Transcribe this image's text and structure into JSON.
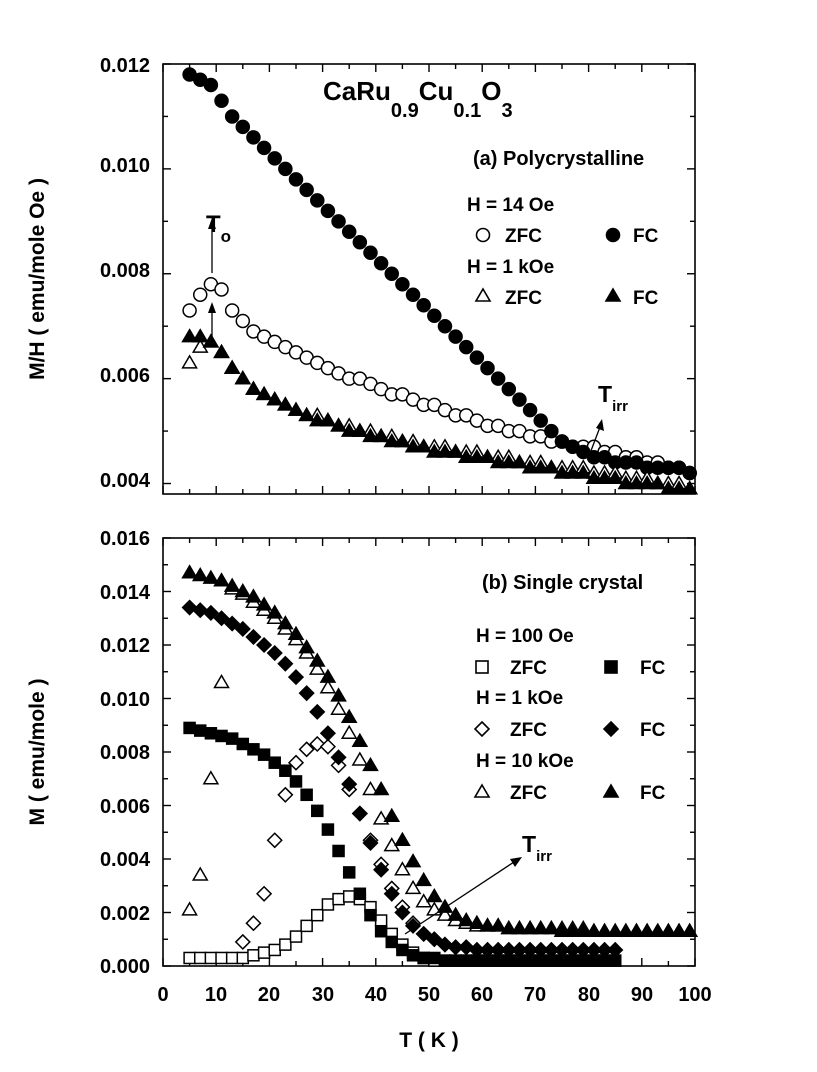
{
  "chart_data": [
    {
      "type": "scatter",
      "panel": "top",
      "title": "CaRu0.9Cu0.1O3",
      "title_parts": {
        "a": "CaRu",
        "b": "0.9",
        "c": "Cu",
        "d": "0.1",
        "e": "O",
        "f": "3"
      },
      "subtitle": "(a) Polycrystalline",
      "xlabel": "",
      "ylabel": "M/H ( emu/mole Oe )",
      "xlim": [
        0,
        100
      ],
      "ylim": [
        0.0038,
        0.012
      ],
      "yticks": [
        "0.004",
        "0.006",
        "0.008",
        "0.010",
        "0.012"
      ],
      "legend": {
        "group1": "H = 14 Oe",
        "group2": "H = 1 kOe",
        "zfc": "ZFC",
        "fc": "FC"
      },
      "annotations": {
        "to_main": "T",
        "to_sub": "o",
        "tirr_main": "T",
        "tirr_sub": "irr"
      },
      "series": [
        {
          "name": "H = 14 Oe ZFC",
          "marker": "circle-open",
          "x": [
            5,
            7,
            9,
            11,
            13,
            15,
            17,
            19,
            21,
            23,
            25,
            27,
            29,
            31,
            33,
            35,
            37,
            39,
            41,
            43,
            45,
            47,
            49,
            51,
            53,
            55,
            57,
            59,
            61,
            63,
            65,
            67,
            69,
            71,
            73,
            75,
            77,
            79,
            81,
            83,
            85,
            87,
            89,
            91,
            93,
            95,
            97,
            99
          ],
          "y": [
            0.0073,
            0.0076,
            0.0078,
            0.0077,
            0.0073,
            0.0071,
            0.0069,
            0.0068,
            0.0067,
            0.0066,
            0.0065,
            0.0064,
            0.0063,
            0.0062,
            0.0061,
            0.006,
            0.006,
            0.0059,
            0.0058,
            0.0057,
            0.0057,
            0.0056,
            0.0055,
            0.0055,
            0.0054,
            0.0053,
            0.0053,
            0.0052,
            0.0051,
            0.0051,
            0.005,
            0.005,
            0.0049,
            0.0049,
            0.0048,
            0.0048,
            0.0047,
            0.0047,
            0.0047,
            0.0046,
            0.0046,
            0.0045,
            0.0045,
            0.0044,
            0.0044,
            0.0043,
            0.0043,
            0.0042
          ]
        },
        {
          "name": "H = 14 Oe FC",
          "marker": "circle-filled",
          "x": [
            5,
            7,
            9,
            11,
            13,
            15,
            17,
            19,
            21,
            23,
            25,
            27,
            29,
            31,
            33,
            35,
            37,
            39,
            41,
            43,
            45,
            47,
            49,
            51,
            53,
            55,
            57,
            59,
            61,
            63,
            65,
            67,
            69,
            71,
            73,
            75,
            77,
            79,
            81,
            83,
            85,
            87,
            89,
            91,
            93,
            95,
            97,
            99
          ],
          "y": [
            0.0118,
            0.0117,
            0.0116,
            0.0113,
            0.011,
            0.0108,
            0.0106,
            0.0104,
            0.0102,
            0.01,
            0.0098,
            0.0096,
            0.0094,
            0.0092,
            0.009,
            0.0088,
            0.0086,
            0.0084,
            0.0082,
            0.008,
            0.0078,
            0.0076,
            0.0074,
            0.0072,
            0.007,
            0.0068,
            0.0066,
            0.0064,
            0.0062,
            0.006,
            0.0058,
            0.0056,
            0.0054,
            0.0052,
            0.005,
            0.0048,
            0.0047,
            0.0046,
            0.0045,
            0.0045,
            0.0044,
            0.0044,
            0.0044,
            0.0043,
            0.0043,
            0.0043,
            0.0043,
            0.0042
          ]
        },
        {
          "name": "H = 1 kOe ZFC",
          "marker": "triangle-open",
          "x": [
            5,
            7,
            9,
            11,
            13,
            15,
            17,
            19,
            21,
            23,
            25,
            27,
            29,
            31,
            33,
            35,
            37,
            39,
            41,
            43,
            45,
            47,
            49,
            51,
            53,
            55,
            57,
            59,
            61,
            63,
            65,
            67,
            69,
            71,
            73,
            75,
            77,
            79,
            81,
            83,
            85,
            87,
            89,
            91,
            93,
            95,
            97,
            99
          ],
          "y": [
            0.0063,
            0.0066,
            0.0067,
            0.0065,
            0.0062,
            0.006,
            0.0058,
            0.0057,
            0.0056,
            0.0055,
            0.0054,
            0.0053,
            0.0053,
            0.0052,
            0.0051,
            0.0051,
            0.005,
            0.005,
            0.0049,
            0.0049,
            0.0048,
            0.0048,
            0.0047,
            0.0047,
            0.0047,
            0.0046,
            0.0046,
            0.0046,
            0.0045,
            0.0045,
            0.0045,
            0.0044,
            0.0044,
            0.0044,
            0.0043,
            0.0043,
            0.0043,
            0.0043,
            0.0042,
            0.0042,
            0.0042,
            0.0041,
            0.0041,
            0.0041,
            0.004,
            0.004,
            0.004,
            0.0039
          ]
        },
        {
          "name": "H = 1 kOe FC",
          "marker": "triangle-filled",
          "x": [
            5,
            7,
            9,
            11,
            13,
            15,
            17,
            19,
            21,
            23,
            25,
            27,
            29,
            31,
            33,
            35,
            37,
            39,
            41,
            43,
            45,
            47,
            49,
            51,
            53,
            55,
            57,
            59,
            61,
            63,
            65,
            67,
            69,
            71,
            73,
            75,
            77,
            79,
            81,
            83,
            85,
            87,
            89,
            91,
            93,
            95,
            97,
            99
          ],
          "y": [
            0.0068,
            0.0068,
            0.0067,
            0.0065,
            0.0062,
            0.006,
            0.0058,
            0.0057,
            0.0056,
            0.0055,
            0.0054,
            0.0053,
            0.0052,
            0.0052,
            0.0051,
            0.005,
            0.005,
            0.0049,
            0.0049,
            0.0048,
            0.0048,
            0.0047,
            0.0047,
            0.0046,
            0.0046,
            0.0046,
            0.0045,
            0.0045,
            0.0045,
            0.0044,
            0.0044,
            0.0044,
            0.0043,
            0.0043,
            0.0043,
            0.0042,
            0.0042,
            0.0042,
            0.0041,
            0.0041,
            0.0041,
            0.004,
            0.004,
            0.004,
            0.004,
            0.0039,
            0.0039,
            0.0039
          ]
        }
      ]
    },
    {
      "type": "scatter",
      "panel": "bottom",
      "subtitle": "(b) Single crystal",
      "xlabel": "T ( K )",
      "ylabel": "M ( emu/mole )",
      "xlim": [
        0,
        100
      ],
      "ylim": [
        0,
        0.016
      ],
      "xticks": [
        "0",
        "10",
        "20",
        "30",
        "40",
        "50",
        "60",
        "70",
        "80",
        "90",
        "100"
      ],
      "yticks": [
        "0.000",
        "0.002",
        "0.004",
        "0.006",
        "0.008",
        "0.010",
        "0.012",
        "0.014",
        "0.016"
      ],
      "legend": {
        "group1": "H = 100 Oe",
        "group2": "H = 1 kOe",
        "group3": "H = 10 kOe",
        "zfc": "ZFC",
        "fc": "FC"
      },
      "annotations": {
        "tirr_main": "T",
        "tirr_sub": "irr"
      },
      "series": [
        {
          "name": "H = 100 Oe ZFC",
          "marker": "square-open",
          "x": [
            5,
            7,
            9,
            11,
            13,
            15,
            17,
            19,
            21,
            23,
            25,
            27,
            29,
            31,
            33,
            35,
            37,
            39,
            41,
            43,
            45,
            47,
            49,
            51,
            53,
            55,
            57,
            59,
            61,
            63,
            65,
            67,
            69,
            71,
            73,
            75,
            77,
            79,
            81,
            83,
            85
          ],
          "y": [
            0.0003,
            0.0003,
            0.0003,
            0.0003,
            0.0003,
            0.0003,
            0.0004,
            0.0005,
            0.0006,
            0.0008,
            0.0011,
            0.0015,
            0.0019,
            0.0023,
            0.0025,
            0.0026,
            0.0025,
            0.0022,
            0.0017,
            0.0012,
            0.0008,
            0.0005,
            0.0003,
            0.0002,
            0.0002,
            0.0002,
            0.0002,
            0.0002,
            0.0002,
            0.0002,
            0.0002,
            0.0002,
            0.0002,
            0.0002,
            0.0002,
            0.0002,
            0.0002,
            0.0002,
            0.0002,
            0.0002,
            0.0002
          ]
        },
        {
          "name": "H = 100 Oe FC",
          "marker": "square-filled",
          "x": [
            5,
            7,
            9,
            11,
            13,
            15,
            17,
            19,
            21,
            23,
            25,
            27,
            29,
            31,
            33,
            35,
            37,
            39,
            41,
            43,
            45,
            47,
            49,
            51,
            53,
            55,
            57,
            59,
            61,
            63,
            65,
            67,
            69,
            71,
            73,
            75,
            77,
            79,
            81,
            83,
            85
          ],
          "y": [
            0.0089,
            0.0088,
            0.0087,
            0.0086,
            0.0085,
            0.0083,
            0.0081,
            0.0079,
            0.0076,
            0.0073,
            0.0069,
            0.0064,
            0.0058,
            0.0051,
            0.0043,
            0.0035,
            0.0027,
            0.0019,
            0.0013,
            0.0009,
            0.0006,
            0.0004,
            0.0003,
            0.0003,
            0.0002,
            0.0002,
            0.0002,
            0.0002,
            0.0002,
            0.0002,
            0.0002,
            0.0002,
            0.0002,
            0.0002,
            0.0002,
            0.0002,
            0.0002,
            0.0002,
            0.0002,
            0.0002,
            0.0002
          ]
        },
        {
          "name": "H = 1 kOe ZFC",
          "marker": "diamond-open",
          "x": [
            15,
            17,
            19,
            21,
            23,
            25,
            27,
            29,
            31,
            33,
            35,
            37,
            39,
            41,
            43,
            45,
            47,
            49,
            51,
            53,
            55,
            57,
            59,
            61,
            63,
            65,
            67,
            69,
            71,
            73,
            75,
            77,
            79,
            81,
            83,
            85
          ],
          "y": [
            0.0009,
            0.0016,
            0.0027,
            0.0047,
            0.0064,
            0.0076,
            0.0081,
            0.0083,
            0.0082,
            0.0075,
            0.0066,
            0.0057,
            0.0047,
            0.0038,
            0.0029,
            0.0022,
            0.0016,
            0.0012,
            0.001,
            0.0008,
            0.0007,
            0.0007,
            0.0006,
            0.0006,
            0.0006,
            0.0006,
            0.0006,
            0.0006,
            0.0006,
            0.0006,
            0.0006,
            0.0006,
            0.0006,
            0.0006,
            0.0006,
            0.0006
          ]
        },
        {
          "name": "H = 1 kOe FC",
          "marker": "diamond-filled",
          "x": [
            5,
            7,
            9,
            11,
            13,
            15,
            17,
            19,
            21,
            23,
            25,
            27,
            29,
            31,
            33,
            35,
            37,
            39,
            41,
            43,
            45,
            47,
            49,
            51,
            53,
            55,
            57,
            59,
            61,
            63,
            65,
            67,
            69,
            71,
            73,
            75,
            77,
            79,
            81,
            83,
            85
          ],
          "y": [
            0.0134,
            0.0133,
            0.0132,
            0.013,
            0.0128,
            0.0126,
            0.0123,
            0.012,
            0.0117,
            0.0113,
            0.0108,
            0.0102,
            0.0095,
            0.0087,
            0.0078,
            0.0068,
            0.0057,
            0.0046,
            0.0036,
            0.0027,
            0.002,
            0.0015,
            0.0012,
            0.001,
            0.0008,
            0.0007,
            0.0007,
            0.0006,
            0.0006,
            0.0006,
            0.0006,
            0.0006,
            0.0006,
            0.0006,
            0.0006,
            0.0006,
            0.0006,
            0.0006,
            0.0006,
            0.0006,
            0.0006
          ]
        },
        {
          "name": "H = 10 kOe ZFC",
          "marker": "triangle-open",
          "x": [
            5,
            7,
            9,
            11,
            13,
            15,
            17,
            19,
            21,
            23,
            25,
            27,
            29,
            31,
            33,
            35,
            37,
            39,
            41,
            43,
            45,
            47,
            49,
            51,
            53,
            55,
            57,
            59,
            61,
            63,
            65,
            67,
            69,
            71,
            73,
            75,
            77,
            79,
            81,
            83,
            85,
            87,
            89,
            91,
            93,
            95,
            97,
            99
          ],
          "y": [
            0.0021,
            0.0034,
            0.007,
            0.0106,
            0.0141,
            0.0139,
            0.0136,
            0.0133,
            0.013,
            0.0126,
            0.0122,
            0.0117,
            0.0111,
            0.0104,
            0.0096,
            0.0087,
            0.0077,
            0.0066,
            0.0055,
            0.0045,
            0.0036,
            0.0029,
            0.0024,
            0.0021,
            0.0019,
            0.0017,
            0.0016,
            0.0015,
            0.0015,
            0.0015,
            0.0014,
            0.0014,
            0.0014,
            0.0014,
            0.0014,
            0.0014,
            0.0014,
            0.0014,
            0.0013,
            0.0013,
            0.0013,
            0.0013,
            0.0013,
            0.0013,
            0.0013,
            0.0013,
            0.0013,
            0.0013
          ]
        },
        {
          "name": "H = 10 kOe FC",
          "marker": "triangle-filled",
          "x": [
            5,
            7,
            9,
            11,
            13,
            15,
            17,
            19,
            21,
            23,
            25,
            27,
            29,
            31,
            33,
            35,
            37,
            39,
            41,
            43,
            45,
            47,
            49,
            51,
            53,
            55,
            57,
            59,
            61,
            63,
            65,
            67,
            69,
            71,
            73,
            75,
            77,
            79,
            81,
            83,
            85,
            87,
            89,
            91,
            93,
            95,
            97,
            99
          ],
          "y": [
            0.0147,
            0.0146,
            0.0145,
            0.0144,
            0.0142,
            0.014,
            0.0138,
            0.0135,
            0.0132,
            0.0128,
            0.0124,
            0.0119,
            0.0114,
            0.0108,
            0.0101,
            0.0093,
            0.0084,
            0.0075,
            0.0066,
            0.0056,
            0.0047,
            0.0039,
            0.0032,
            0.0026,
            0.0022,
            0.0019,
            0.0017,
            0.0016,
            0.0015,
            0.0015,
            0.0014,
            0.0014,
            0.0014,
            0.0014,
            0.0014,
            0.0013,
            0.0013,
            0.0013,
            0.0013,
            0.0013,
            0.0013,
            0.0013,
            0.0013,
            0.0013,
            0.0013,
            0.0013,
            0.0013,
            0.0013
          ]
        }
      ]
    }
  ]
}
